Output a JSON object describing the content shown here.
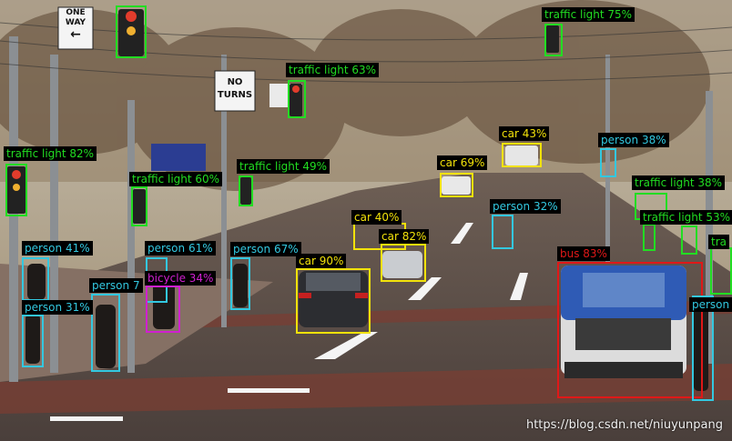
{
  "colors": {
    "traffic_light": "#22dd22",
    "car": "#f2e20a",
    "person": "#33c8e0",
    "bicycle": "#d020d0",
    "bus": "#e01818"
  },
  "signs": {
    "one_way_line1": "ONE",
    "one_way_line2": "WAY",
    "no_turns_line1": "NO",
    "no_turns_line2": "TURNS"
  },
  "detections": [
    {
      "label": "traffic light 75%",
      "cls": "traffic_light"
    },
    {
      "label": "traffic light 63%",
      "cls": "traffic_light"
    },
    {
      "label": "car 43%",
      "cls": "car"
    },
    {
      "label": "person 38%",
      "cls": "person"
    },
    {
      "label": "traffic light 82%",
      "cls": "traffic_light"
    },
    {
      "label": "car 69%",
      "cls": "car"
    },
    {
      "label": "traffic light 49%",
      "cls": "traffic_light"
    },
    {
      "label": "traffic light 60%",
      "cls": "traffic_light"
    },
    {
      "label": "traffic light 38%",
      "cls": "traffic_light"
    },
    {
      "label": "person 32%",
      "cls": "person"
    },
    {
      "label": "traffic light 53%",
      "cls": "traffic_light"
    },
    {
      "label": "car 40%",
      "cls": "car"
    },
    {
      "label": "car 82%",
      "cls": "car"
    },
    {
      "label": "person 41%",
      "cls": "person"
    },
    {
      "label": "person 61%",
      "cls": "person"
    },
    {
      "label": "person 67%",
      "cls": "person"
    },
    {
      "label": "bus 83%",
      "cls": "bus"
    },
    {
      "label": "car 90%",
      "cls": "car"
    },
    {
      "label": "bicycle 34%",
      "cls": "bicycle"
    },
    {
      "label": "person 7",
      "cls": "person"
    },
    {
      "label": "person 31%",
      "cls": "person"
    },
    {
      "label": "tra",
      "cls": "traffic_light"
    },
    {
      "label": "person",
      "cls": "person"
    }
  ],
  "watermark": "https://blog.csdn.net/niuyunpang"
}
